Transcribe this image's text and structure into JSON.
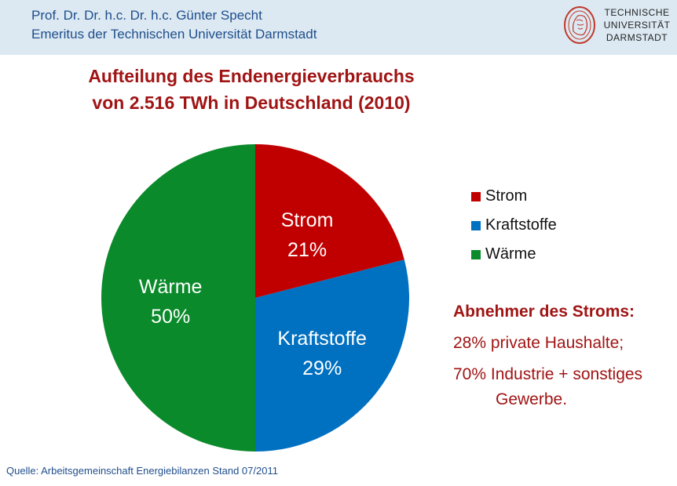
{
  "header": {
    "author": "Prof. Dr. Dr. h.c. Dr. h.c. Günter Specht",
    "affiliation": "Emeritus der Technischen Universität Darmstadt",
    "logo_lines": [
      "TECHNISCHE",
      "UNIVERSITÄT",
      "DARMSTADT"
    ]
  },
  "chart_data": {
    "type": "pie",
    "title": "Aufteilung des Endenergieverbrauchs",
    "subtitle": "von 2.516 TWh in Deutschland (2010)",
    "slices": [
      {
        "name": "Strom",
        "value": 21,
        "label": "21%",
        "color": "#c00000"
      },
      {
        "name": "Kraftstoffe",
        "value": 29,
        "label": "29%",
        "color": "#0070c0"
      },
      {
        "name": "Wärme",
        "value": 50,
        "label": "50%",
        "color": "#0a8a2a"
      }
    ],
    "legend": [
      "Strom",
      "Kraftstoffe",
      "Wärme"
    ],
    "legend_position": "right"
  },
  "notes": {
    "heading": "Abnehmer des Stroms:",
    "lines": [
      "28% private Haushalte;",
      "70% Industrie + sonstiges",
      "Gewerbe."
    ]
  },
  "source": "Quelle: Arbeitsgemeinschaft Energiebilanzen Stand 07/2011"
}
